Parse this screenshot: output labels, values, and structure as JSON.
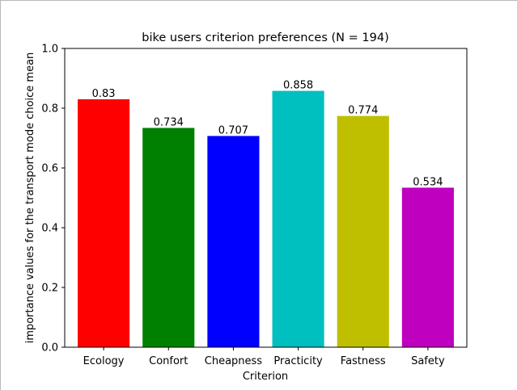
{
  "chart_data": {
    "type": "bar",
    "title": "bike users criterion preferences (N = 194)",
    "xlabel": "Criterion",
    "ylabel": "importance values for the transport mode choice mean",
    "categories": [
      "Ecology",
      "Confort",
      "Cheapness",
      "Practicity",
      "Fastness",
      "Safety"
    ],
    "values": [
      0.83,
      0.734,
      0.707,
      0.858,
      0.774,
      0.534
    ],
    "value_labels": [
      "0.83",
      "0.734",
      "0.707",
      "0.858",
      "0.774",
      "0.534"
    ],
    "colors": [
      "#ff0000",
      "#008000",
      "#0000ff",
      "#00bfbf",
      "#bfbf00",
      "#bf00bf"
    ],
    "ylim": [
      0,
      1.0
    ],
    "yticks": [
      0.0,
      0.2,
      0.4,
      0.6,
      0.8,
      1.0
    ],
    "ytick_labels": [
      "0.0",
      "0.2",
      "0.4",
      "0.6",
      "0.8",
      "1.0"
    ],
    "grid": false,
    "legend": "none"
  }
}
